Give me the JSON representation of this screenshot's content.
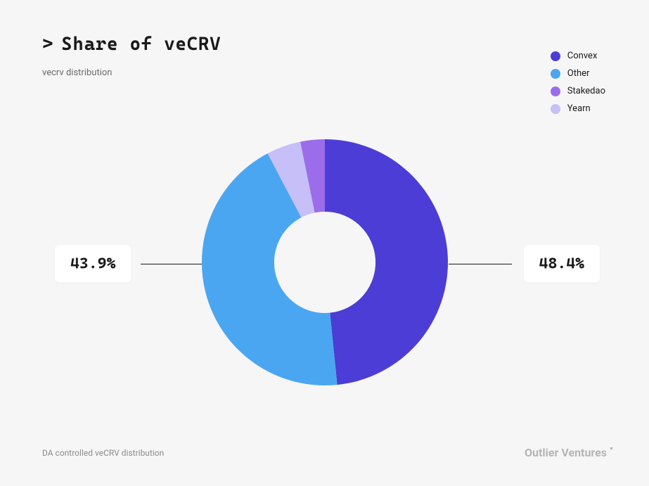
{
  "header": {
    "prefix": ">",
    "title": "Share of veCRV",
    "subtitle": "vecrv distribution"
  },
  "chart": {
    "type": "donut",
    "outer_radius": 175,
    "inner_radius": 72,
    "background_color": "#f6f6f6",
    "start_angle_deg": -90,
    "slices": [
      {
        "name": "Convex",
        "value": 48.4,
        "color": "#4c3dd6"
      },
      {
        "name": "Other",
        "value": 43.9,
        "color": "#4ba6f2"
      },
      {
        "name": "Yearn",
        "value": 4.5,
        "color": "#c7bff7"
      },
      {
        "name": "Stakedao",
        "value": 3.2,
        "color": "#9b6dea"
      }
    ],
    "callouts": {
      "right": {
        "slice": "Convex",
        "text": "48.4%"
      },
      "left": {
        "slice": "Other",
        "text": "43.9%"
      }
    }
  },
  "legend": {
    "items": [
      {
        "label": "Convex",
        "color": "#4c3dd6"
      },
      {
        "label": "Other",
        "color": "#4ba6f2"
      },
      {
        "label": "Stakedao",
        "color": "#9b6dea"
      },
      {
        "label": "Yearn",
        "color": "#c7bff7"
      }
    ]
  },
  "footer": {
    "note": "DA controlled veCRV distribution",
    "brand": "Outlier Ventures"
  },
  "typography": {
    "title_fontsize": 26,
    "title_weight": 700,
    "subtitle_fontsize": 13,
    "legend_fontsize": 13,
    "callout_fontsize": 22,
    "callout_weight": 700,
    "footer_fontsize": 12,
    "brand_fontsize": 16
  },
  "colors": {
    "page_bg": "#f6f6f6",
    "text_primary": "#1a1a1a",
    "text_muted": "#6b6b6b",
    "text_footer": "#8b8b8b",
    "brand_muted": "#b5b5b5",
    "callout_bg": "#ffffff"
  }
}
